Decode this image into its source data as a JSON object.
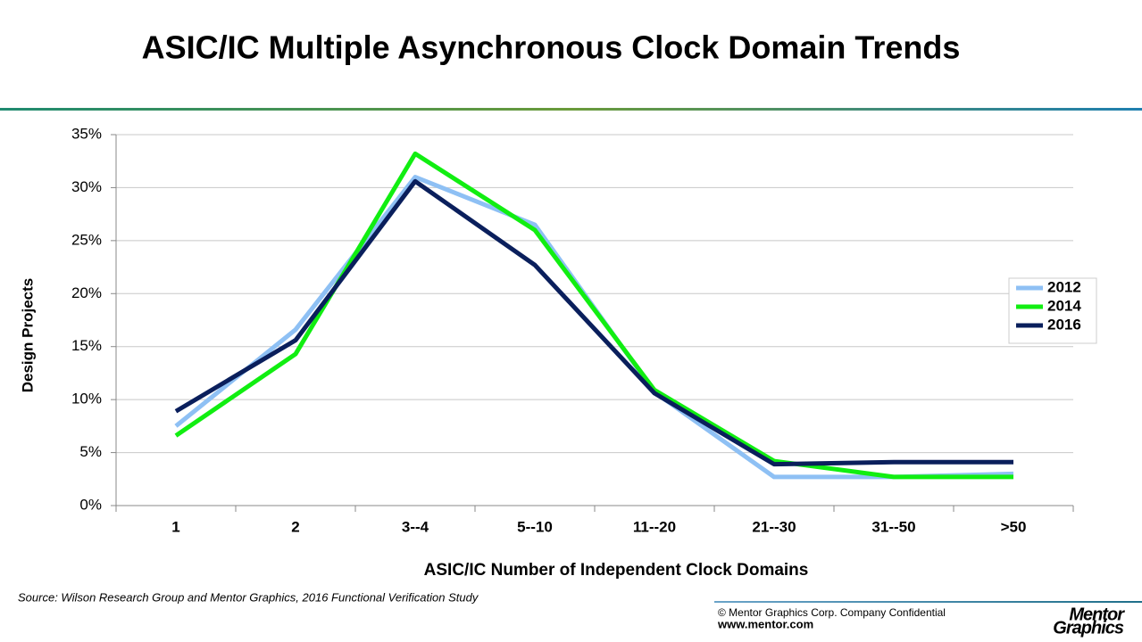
{
  "chart_data": {
    "type": "line",
    "title": "ASIC/IC Multiple Asynchronous Clock Domain Trends",
    "xlabel": "ASIC/IC Number of Independent Clock Domains",
    "ylabel": "Design Projects",
    "categories": [
      "1",
      "2",
      "3--4",
      "5--10",
      "11--20",
      "21--30",
      "31--50",
      ">50"
    ],
    "series": [
      {
        "name": "2012",
        "color": "#8ec0f4",
        "values": [
          7.5,
          16.6,
          31.0,
          26.5,
          10.7,
          2.7,
          2.7,
          3.0
        ]
      },
      {
        "name": "2014",
        "color": "#11ee11",
        "values": [
          6.6,
          14.3,
          33.2,
          26.0,
          10.9,
          4.2,
          2.7,
          2.7
        ]
      },
      {
        "name": "2016",
        "color": "#0a1f5c",
        "values": [
          8.9,
          15.6,
          30.6,
          22.7,
          10.6,
          3.9,
          4.1,
          4.1
        ]
      }
    ],
    "ylim": [
      0,
      35
    ],
    "yticks": [
      {
        "value": 0,
        "label": "0%"
      },
      {
        "value": 5,
        "label": "5%"
      },
      {
        "value": 10,
        "label": "10%"
      },
      {
        "value": 15,
        "label": "15%"
      },
      {
        "value": 20,
        "label": "20%"
      },
      {
        "value": 25,
        "label": "25%"
      },
      {
        "value": 30,
        "label": "30%"
      },
      {
        "value": 35,
        "label": "35%"
      }
    ],
    "grid": true,
    "legend": "right"
  },
  "footer": {
    "source": "Source:  Wilson Research Group and Mentor Graphics, 2016 Functional Verification Study",
    "copyright": "© Mentor Graphics Corp. Company Confidential",
    "website": "www.mentor.com",
    "logo_top": "Mentor",
    "logo_bottom": "Graphics"
  }
}
